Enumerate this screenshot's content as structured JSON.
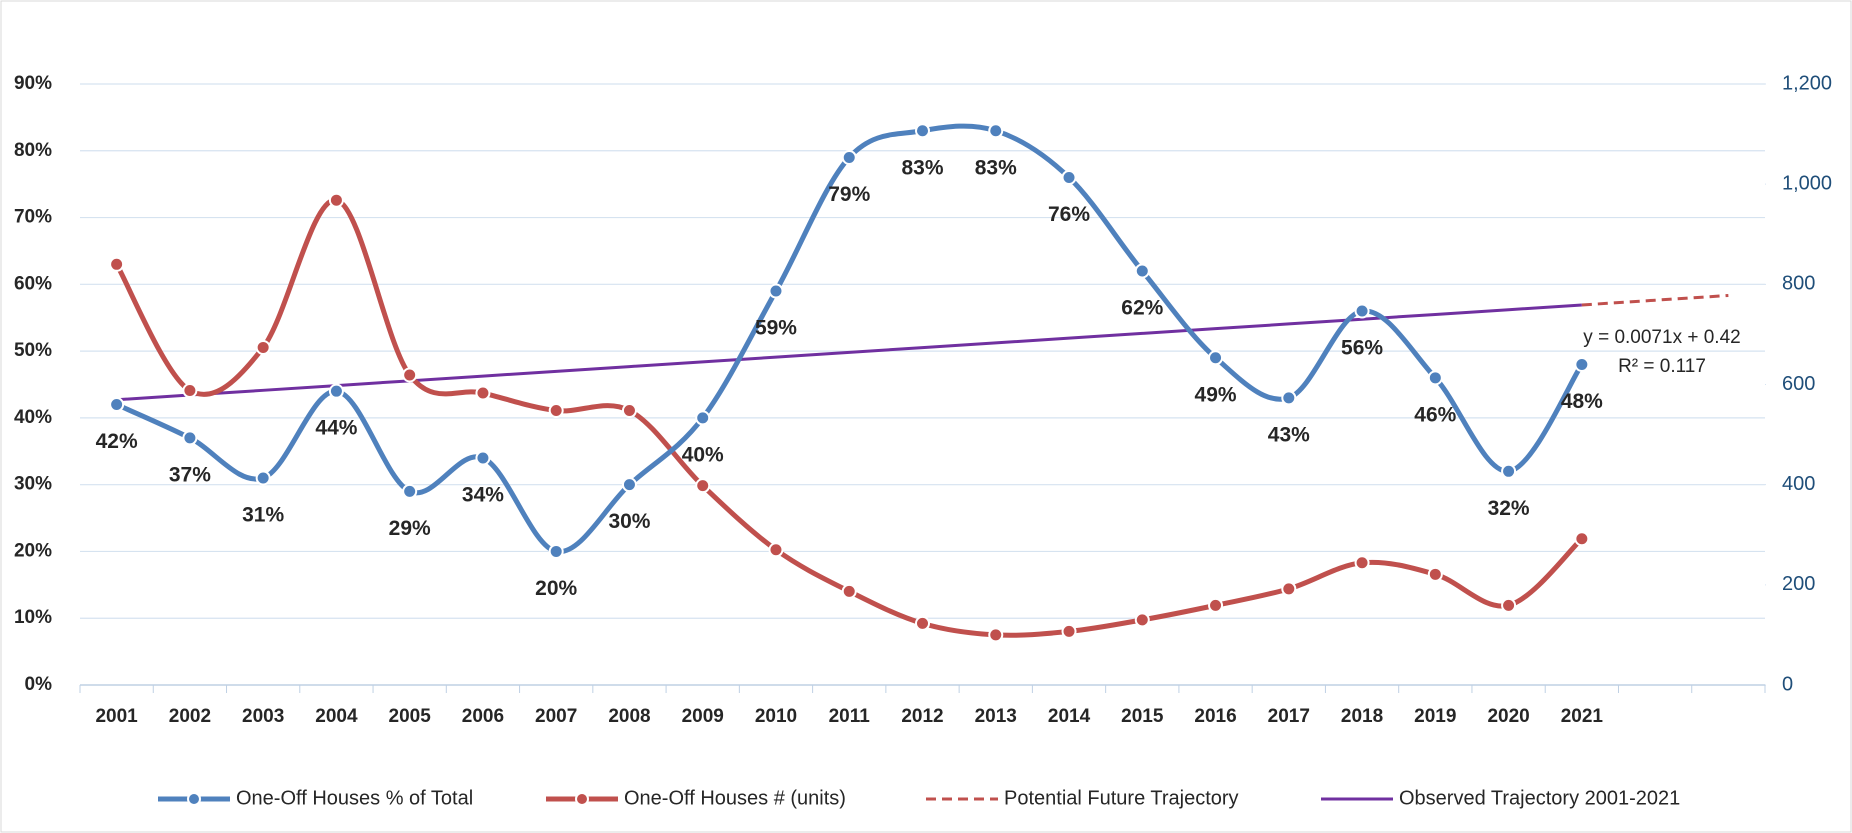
{
  "chart_data": {
    "type": "line",
    "categories": [
      "2001",
      "2002",
      "2003",
      "2004",
      "2005",
      "2006",
      "2007",
      "2008",
      "2009",
      "2010",
      "2011",
      "2012",
      "2013",
      "2014",
      "2015",
      "2016",
      "2017",
      "2018",
      "2019",
      "2020",
      "2021",
      null,
      null
    ],
    "series": [
      {
        "name": "One-Off Houses % of Total",
        "color": "#4f81bd",
        "markers": true,
        "values": [
          42,
          37,
          31,
          44,
          29,
          34,
          20,
          30,
          40,
          59,
          79,
          83,
          83,
          76,
          62,
          49,
          43,
          56,
          46,
          32,
          48,
          null,
          null
        ],
        "value_labels": [
          "42%",
          "37%",
          "31%",
          "44%",
          "29%",
          "34%",
          "20%",
          "30%",
          "40%",
          "59%",
          "79%",
          "83%",
          "83%",
          "76%",
          "62%",
          "49%",
          "43%",
          "56%",
          "46%",
          "32%",
          "48%",
          null,
          null
        ]
      },
      {
        "name": "One-Off Houses # (units)",
        "color": "#c0504d",
        "markers": true,
        "axis": "y2",
        "values": [
          840,
          588,
          674,
          968,
          619,
          583,
          548,
          548,
          398,
          270,
          187,
          123,
          100,
          107,
          130,
          159,
          192,
          244,
          221,
          159,
          292,
          null,
          null
        ]
      },
      {
        "name": "Potential Future Trajectory",
        "color": "#c0504d",
        "dashed": true,
        "values": [
          null,
          null,
          null,
          null,
          null,
          null,
          null,
          null,
          null,
          null,
          null,
          null,
          null,
          null,
          null,
          null,
          null,
          null,
          null,
          null,
          56.91,
          57.62,
          58.33
        ]
      },
      {
        "name": "Observed Trajectory 2001-2021",
        "color": "#7030a0",
        "values": [
          42.71,
          43.42,
          44.13,
          44.84,
          45.55,
          46.26,
          46.97,
          47.68,
          48.39,
          49.1,
          49.81,
          50.52,
          51.23,
          51.94,
          52.65,
          53.36,
          54.07,
          54.78,
          55.49,
          56.2,
          56.91,
          null,
          null
        ]
      }
    ],
    "annotations": [
      "y = 0.0071x + 0.42",
      "R² = 0.117"
    ],
    "ylim": [
      0,
      90
    ],
    "yticks": [
      {
        "value": 0,
        "label": "0%"
      },
      {
        "value": 10,
        "label": "10%"
      },
      {
        "value": 20,
        "label": "20%"
      },
      {
        "value": 30,
        "label": "30%"
      },
      {
        "value": 40,
        "label": "40%"
      },
      {
        "value": 50,
        "label": "50%"
      },
      {
        "value": 60,
        "label": "60%"
      },
      {
        "value": 70,
        "label": "70%"
      },
      {
        "value": 80,
        "label": "80%"
      },
      {
        "value": 90,
        "label": "90%"
      }
    ],
    "y2lim": [
      0,
      1200
    ],
    "y2ticks": [
      0,
      200,
      400,
      600,
      800,
      {
        "value": 1000,
        "label": "1,000"
      },
      {
        "value": 1200,
        "label": "1,200"
      }
    ],
    "grid": true,
    "legend": "bottom"
  }
}
